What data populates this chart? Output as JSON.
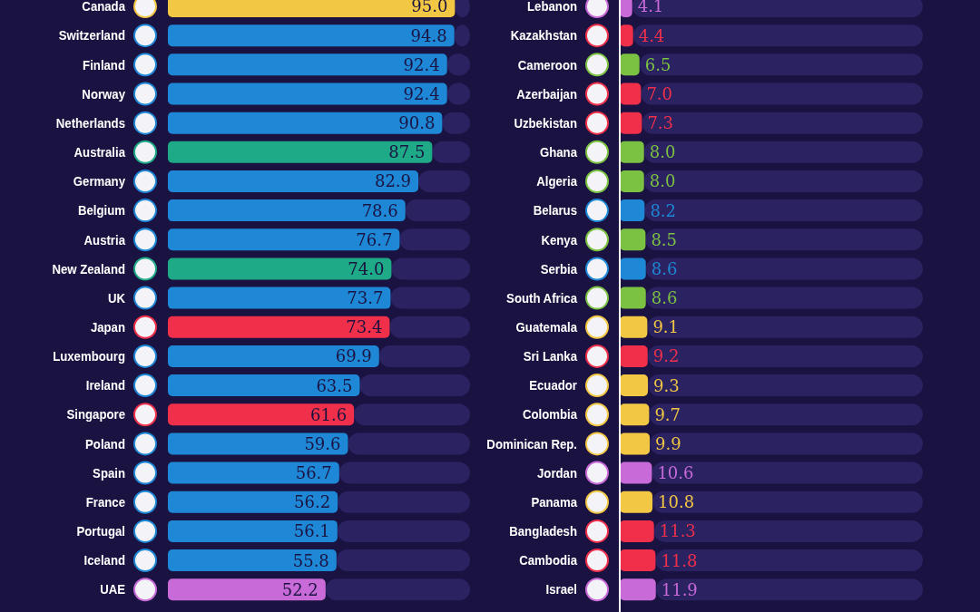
{
  "chart_data": [
    {
      "type": "bar",
      "orientation": "horizontal",
      "stacked": true,
      "categories": [
        "Canada",
        "Switzerland",
        "Finland",
        "Norway",
        "Netherlands",
        "Australia",
        "Germany",
        "Belgium",
        "Austria",
        "New Zealand",
        "UK",
        "Japan",
        "Luxembourg",
        "Ireland",
        "Singapore",
        "Poland",
        "Spain",
        "France",
        "Portugal",
        "Iceland",
        "UAE"
      ],
      "series": [
        {
          "values": [
            95.0,
            94.8,
            92.4,
            92.4,
            90.8,
            87.5,
            82.9,
            78.6,
            76.7,
            74.0,
            73.7,
            73.4,
            69.9,
            63.5,
            61.6,
            59.6,
            56.7,
            56.2,
            56.1,
            55.8,
            52.2
          ],
          "value_labels": [
            "95.0",
            "94.8",
            "92.4",
            "92.4",
            "90.8",
            "87.5",
            "82.9",
            "78.6",
            "76.7",
            "74.0",
            "73.7",
            "73.4",
            "69.9",
            "63.5",
            "61.6",
            "59.6",
            "56.7",
            "56.2",
            "56.1",
            "55.8",
            "52.2"
          ],
          "colors": [
            "#f2c744",
            "#1e88d6",
            "#1e88d6",
            "#1e88d6",
            "#1e88d6",
            "#1ea987",
            "#1e88d6",
            "#1e88d6",
            "#1e88d6",
            "#1ea987",
            "#1e88d6",
            "#f0304a",
            "#1e88d6",
            "#1e88d6",
            "#f0304a",
            "#1e88d6",
            "#1e88d6",
            "#1e88d6",
            "#1e88d6",
            "#1e88d6",
            "#c86ad8"
          ]
        },
        {
          "color": "#2b2262",
          "values": [
            5.0,
            5.2,
            7.6,
            7.6,
            9.2,
            12.5,
            17.1,
            21.4,
            23.3,
            26.0,
            26.3,
            26.6,
            30.1,
            36.5,
            38.4,
            40.4,
            43.3,
            43.8,
            43.9,
            44.2,
            47.8
          ]
        }
      ]
    },
    {
      "type": "bar",
      "orientation": "horizontal",
      "stacked": true,
      "ref_lines": [
        {
          "axis": "x",
          "value": 0,
          "color": "#ffffff"
        }
      ],
      "categories": [
        "Lebanon",
        "Kazakhstan",
        "Cameroon",
        "Azerbaijan",
        "Uzbekistan",
        "Ghana",
        "Algeria",
        "Belarus",
        "Kenya",
        "Serbia",
        "South Africa",
        "Guatemala",
        "Sri Lanka",
        "Ecuador",
        "Colombia",
        "Dominican Rep.",
        "Jordan",
        "Panama",
        "Bangladesh",
        "Cambodia",
        "Israel"
      ],
      "series": [
        {
          "values": [
            4.1,
            4.4,
            6.5,
            7.0,
            7.3,
            8.0,
            8.0,
            8.2,
            8.5,
            8.6,
            8.6,
            9.1,
            9.2,
            9.3,
            9.7,
            9.9,
            10.6,
            10.8,
            11.3,
            11.8,
            11.9
          ],
          "value_labels": [
            "4.1",
            "4.4",
            "6.5",
            "7.0",
            "7.3",
            "8.0",
            "8.0",
            "8.2",
            "8.5",
            "8.6",
            "8.6",
            "9.1",
            "9.2",
            "9.3",
            "9.7",
            "9.9",
            "10.6",
            "10.8",
            "11.3",
            "11.8",
            "11.9"
          ],
          "colors": [
            "#c86ad8",
            "#f0304a",
            "#7cc242",
            "#f0304a",
            "#f0304a",
            "#7cc242",
            "#7cc242",
            "#1e88d6",
            "#7cc242",
            "#1e88d6",
            "#7cc242",
            "#f2c744",
            "#f0304a",
            "#f2c744",
            "#f2c744",
            "#f2c744",
            "#c86ad8",
            "#f2c744",
            "#f0304a",
            "#f0304a",
            "#c86ad8"
          ]
        },
        {
          "color": "#2b2262",
          "values": [
            95.9,
            95.6,
            93.5,
            93.0,
            92.7,
            92.0,
            92.0,
            91.8,
            91.5,
            91.4,
            91.4,
            90.9,
            90.8,
            90.7,
            90.3,
            90.1,
            89.4,
            89.2,
            88.7,
            88.2,
            88.1
          ]
        }
      ]
    }
  ]
}
